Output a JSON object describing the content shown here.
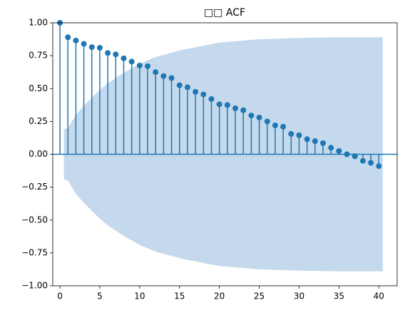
{
  "chart_data": {
    "type": "acf",
    "title": "□□ ACF",
    "x": [
      0,
      1,
      2,
      3,
      4,
      5,
      6,
      7,
      8,
      9,
      10,
      11,
      12,
      13,
      14,
      15,
      16,
      17,
      18,
      19,
      20,
      21,
      22,
      23,
      24,
      25,
      26,
      27,
      28,
      29,
      30,
      31,
      32,
      33,
      34,
      35,
      36,
      37,
      38,
      39,
      40
    ],
    "values": [
      1.0,
      0.89,
      0.865,
      0.84,
      0.815,
      0.81,
      0.77,
      0.76,
      0.73,
      0.705,
      0.675,
      0.67,
      0.625,
      0.595,
      0.58,
      0.525,
      0.51,
      0.475,
      0.455,
      0.42,
      0.38,
      0.375,
      0.35,
      0.335,
      0.295,
      0.28,
      0.25,
      0.22,
      0.21,
      0.155,
      0.145,
      0.115,
      0.1,
      0.085,
      0.05,
      0.025,
      0.0,
      -0.015,
      -0.05,
      -0.065,
      -0.09
    ],
    "color": "#1f77b4",
    "band": {
      "x": [
        0.5,
        1,
        2,
        3,
        4,
        5,
        6,
        8,
        10,
        12,
        15,
        20,
        25,
        30,
        35,
        40.5
      ],
      "upper": [
        0.19,
        0.2,
        0.3,
        0.37,
        0.43,
        0.49,
        0.54,
        0.62,
        0.69,
        0.74,
        0.79,
        0.85,
        0.875,
        0.885,
        0.89,
        0.89
      ],
      "lower": [
        -0.19,
        -0.2,
        -0.3,
        -0.37,
        -0.43,
        -0.49,
        -0.54,
        -0.62,
        -0.69,
        -0.74,
        -0.79,
        -0.85,
        -0.875,
        -0.885,
        -0.89,
        -0.89
      ],
      "color": "#c5d9ec"
    },
    "xlim": [
      -0.9,
      42.3
    ],
    "ylim": [
      -1,
      1
    ],
    "xticks": [
      0,
      5,
      10,
      15,
      20,
      25,
      30,
      35,
      40
    ],
    "yticks": [
      {
        "value": -1,
        "label": "−1.00"
      },
      {
        "value": -0.75,
        "label": "−0.75"
      },
      {
        "value": -0.5,
        "label": "−0.50"
      },
      {
        "value": -0.25,
        "label": "−0.25"
      },
      {
        "value": 0,
        "label": "0.00"
      },
      {
        "value": 0.25,
        "label": "0.25"
      },
      {
        "value": 0.5,
        "label": "0.50"
      },
      {
        "value": 0.75,
        "label": "0.75"
      },
      {
        "value": 1,
        "label": "1.00"
      }
    ]
  }
}
